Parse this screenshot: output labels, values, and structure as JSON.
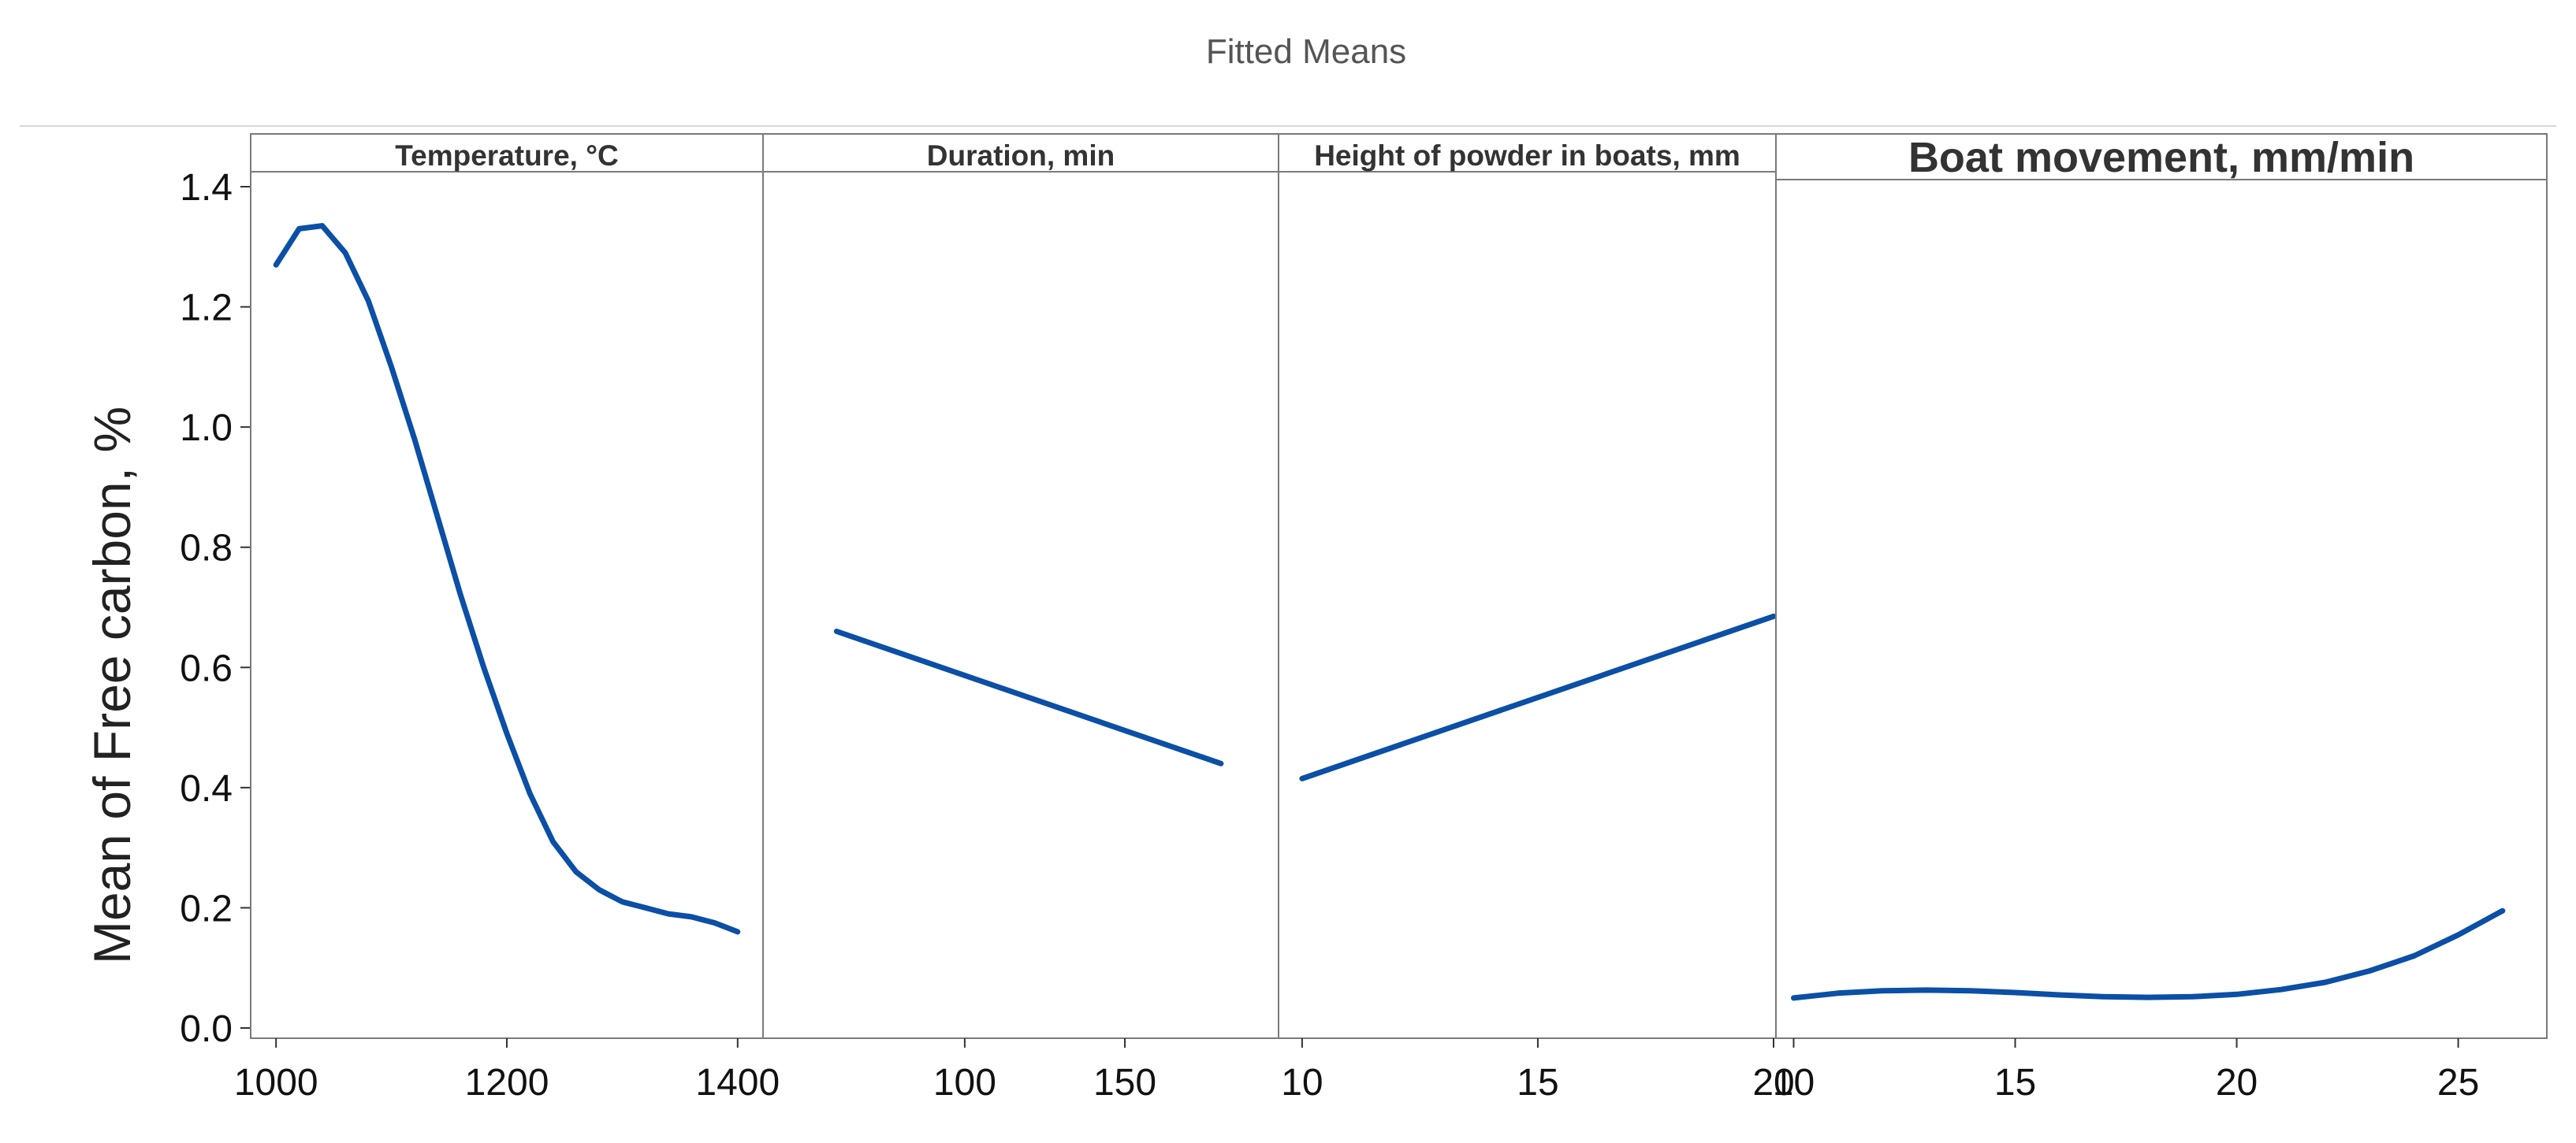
{
  "page": {
    "title": "Fitted Means"
  },
  "chart_data": {
    "type": "line",
    "title": "Fitted Means",
    "ylabel": "Mean of Free carbon, %",
    "ylim": [
      0.0,
      1.4
    ],
    "yticks": [
      "0.0",
      "0.2",
      "0.4",
      "0.6",
      "0.8",
      "1.0",
      "1.2",
      "1.4"
    ],
    "ytick_values": [
      0.0,
      0.2,
      0.4,
      0.6,
      0.8,
      1.0,
      1.2,
      1.4
    ],
    "line_color": "#0b4fa6",
    "panels": [
      {
        "label": "Temperature, °C",
        "xlim": [
          978,
          1422
        ],
        "xticks": [
          1000,
          1200,
          1400
        ],
        "tick_labels": [
          "1000",
          "1200",
          "1400"
        ],
        "x": [
          1000,
          1020,
          1040,
          1060,
          1080,
          1100,
          1120,
          1140,
          1160,
          1180,
          1200,
          1220,
          1240,
          1260,
          1280,
          1300,
          1320,
          1340,
          1360,
          1380,
          1400
        ],
        "y": [
          1.27,
          1.33,
          1.335,
          1.29,
          1.21,
          1.1,
          0.98,
          0.85,
          0.72,
          0.6,
          0.49,
          0.39,
          0.31,
          0.26,
          0.23,
          0.21,
          0.2,
          0.19,
          0.185,
          0.175,
          0.16
        ]
      },
      {
        "label": "Duration, min",
        "xlim": [
          37,
          198
        ],
        "xticks": [
          100,
          150
        ],
        "tick_labels": [
          "100",
          "150"
        ],
        "x": [
          60,
          180
        ],
        "y": [
          0.66,
          0.44
        ]
      },
      {
        "label": "Height of powder in boats, mm",
        "xlim": [
          9.5,
          20.05
        ],
        "xticks": [
          10,
          15,
          20
        ],
        "tick_labels": [
          "10",
          "15",
          "20"
        ],
        "x": [
          10,
          20
        ],
        "y": [
          0.415,
          0.685
        ]
      },
      {
        "label": "Boat movement, mm/min",
        "xlim": [
          9.6,
          27.0
        ],
        "xticks": [
          10,
          15,
          20,
          25
        ],
        "tick_labels": [
          "10",
          "15",
          "20",
          "25"
        ],
        "x": [
          10,
          11,
          12,
          13,
          14,
          15,
          16,
          17,
          18,
          19,
          20,
          21,
          22,
          23,
          24,
          25,
          26
        ],
        "y": [
          0.05,
          0.058,
          0.062,
          0.063,
          0.062,
          0.059,
          0.055,
          0.052,
          0.051,
          0.052,
          0.056,
          0.064,
          0.076,
          0.095,
          0.12,
          0.155,
          0.195
        ]
      }
    ]
  }
}
